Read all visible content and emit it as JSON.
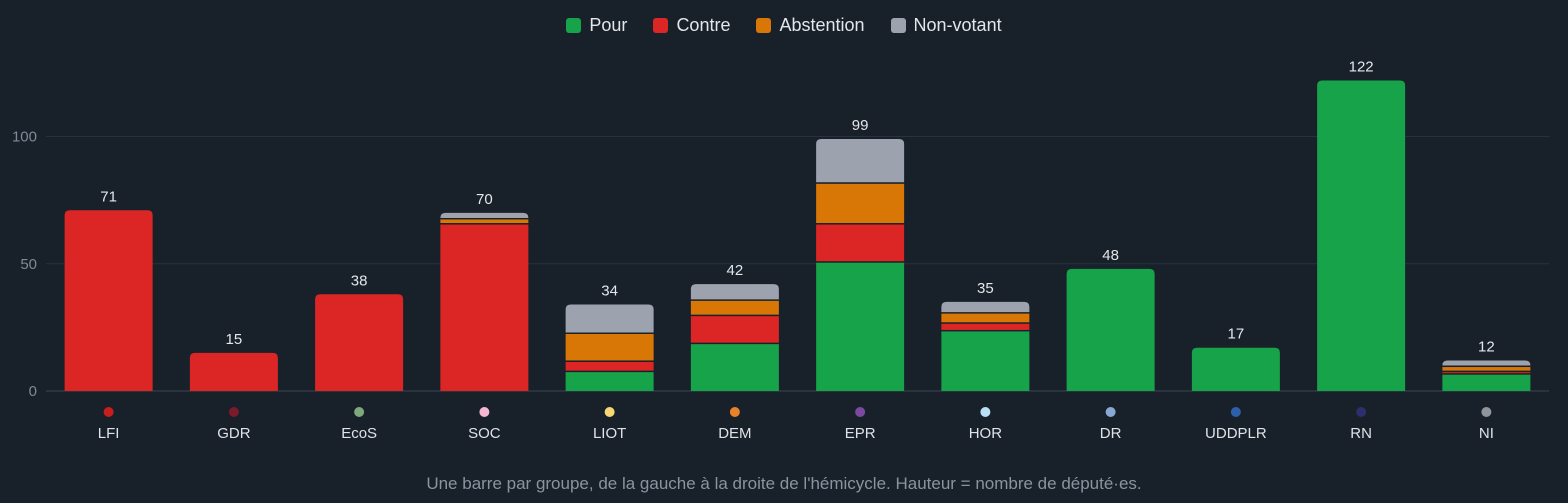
{
  "legend": [
    {
      "label": "Pour",
      "color": "#16a34a"
    },
    {
      "label": "Contre",
      "color": "#dc2626"
    },
    {
      "label": "Abstention",
      "color": "#d97706"
    },
    {
      "label": "Non-votant",
      "color": "#9ca3af"
    }
  ],
  "caption": "Une barre par groupe, de la gauche à la droite de l'hémicycle. Hauteur = nombre de député·es.",
  "chart_data": {
    "type": "bar",
    "stacked": true,
    "categories": [
      "LFI",
      "GDR",
      "EcoS",
      "SOC",
      "LIOT",
      "DEM",
      "EPR",
      "HOR",
      "DR",
      "UDDPLR",
      "RN",
      "NI"
    ],
    "category_colors": [
      "#c81e1e",
      "#7a1a2a",
      "#7fa97a",
      "#f5b8d0",
      "#f7d774",
      "#e8832a",
      "#7b4aa0",
      "#b9e0f5",
      "#8aa8d6",
      "#2f5fa8",
      "#2b2f6b",
      "#8f959b"
    ],
    "totals": [
      71,
      15,
      38,
      70,
      34,
      42,
      99,
      35,
      48,
      17,
      122,
      12
    ],
    "series": [
      {
        "name": "Pour",
        "color": "#16a34a",
        "values": [
          0,
          0,
          0,
          0,
          8,
          19,
          51,
          24,
          48,
          17,
          122,
          7
        ]
      },
      {
        "name": "Contre",
        "color": "#dc2626",
        "values": [
          71,
          15,
          38,
          66,
          4,
          11,
          15,
          3,
          0,
          0,
          0,
          1
        ]
      },
      {
        "name": "Abstention",
        "color": "#d97706",
        "values": [
          0,
          0,
          0,
          2,
          11,
          6,
          16,
          4,
          0,
          0,
          0,
          2
        ]
      },
      {
        "name": "Non-votant",
        "color": "#9ca3af",
        "values": [
          0,
          0,
          0,
          2,
          11,
          6,
          17,
          4,
          0,
          0,
          0,
          2
        ]
      }
    ],
    "yticks": [
      0,
      50,
      100
    ],
    "ylim": [
      0,
      122
    ],
    "grid": true,
    "legend_position": "top-center"
  }
}
